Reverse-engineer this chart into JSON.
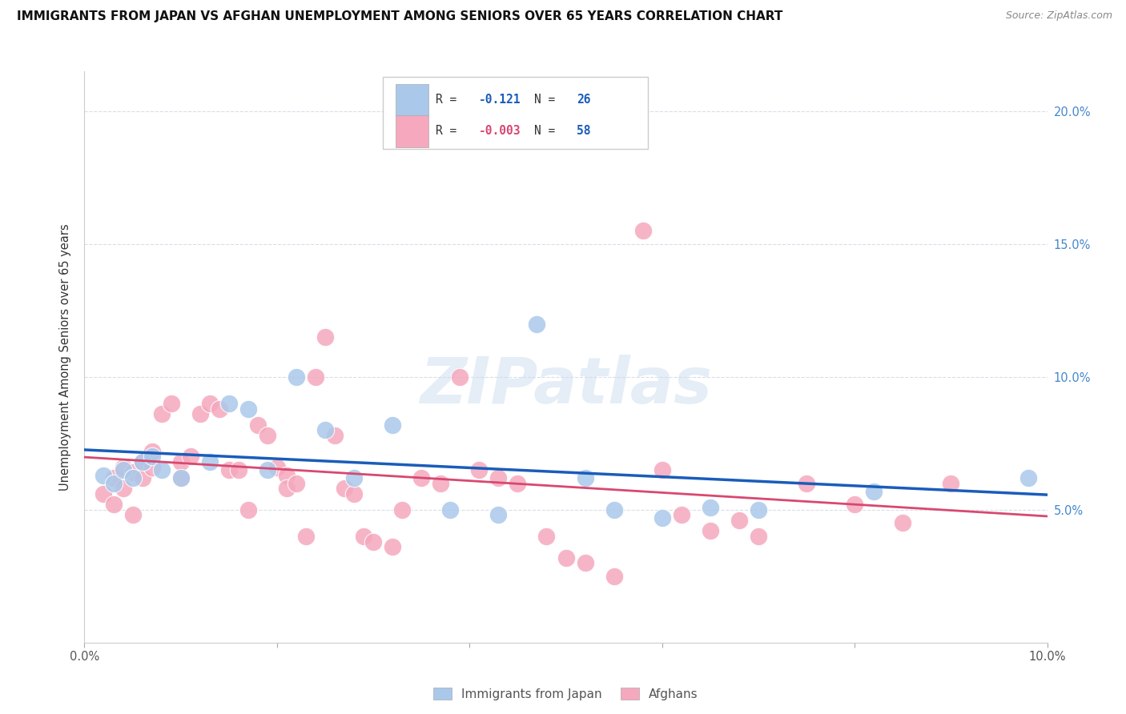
{
  "title": "IMMIGRANTS FROM JAPAN VS AFGHAN UNEMPLOYMENT AMONG SENIORS OVER 65 YEARS CORRELATION CHART",
  "source": "Source: ZipAtlas.com",
  "ylabel": "Unemployment Among Seniors over 65 years",
  "xlim": [
    0.0,
    0.1
  ],
  "ylim": [
    0.0,
    0.215
  ],
  "right_yticks": [
    0.05,
    0.1,
    0.15,
    0.2
  ],
  "xticks": [
    0.0,
    0.02,
    0.04,
    0.06,
    0.08,
    0.1
  ],
  "legend_japan_R": "-0.121",
  "legend_japan_N": "26",
  "legend_afghan_R": "-0.003",
  "legend_afghan_N": "58",
  "japan_color": "#aac8ea",
  "afghan_color": "#f5a8be",
  "japan_trend_color": "#1a5cba",
  "afghan_trend_color": "#d84870",
  "japan_R_color": "#1a5cba",
  "afghan_R_color": "#d84870",
  "N_color": "#1a5cba",
  "watermark": "ZIPatlas",
  "japan_x": [
    0.002,
    0.003,
    0.004,
    0.005,
    0.006,
    0.007,
    0.008,
    0.01,
    0.013,
    0.015,
    0.017,
    0.019,
    0.022,
    0.025,
    0.028,
    0.032,
    0.038,
    0.043,
    0.047,
    0.052,
    0.055,
    0.06,
    0.065,
    0.07,
    0.082,
    0.098
  ],
  "japan_y": [
    0.063,
    0.06,
    0.065,
    0.062,
    0.068,
    0.07,
    0.065,
    0.062,
    0.068,
    0.09,
    0.088,
    0.065,
    0.1,
    0.08,
    0.062,
    0.082,
    0.05,
    0.048,
    0.12,
    0.062,
    0.05,
    0.047,
    0.051,
    0.05,
    0.057,
    0.062
  ],
  "afghan_x": [
    0.002,
    0.003,
    0.003,
    0.004,
    0.004,
    0.005,
    0.005,
    0.006,
    0.006,
    0.007,
    0.007,
    0.008,
    0.009,
    0.01,
    0.01,
    0.011,
    0.012,
    0.013,
    0.014,
    0.015,
    0.016,
    0.017,
    0.018,
    0.019,
    0.02,
    0.021,
    0.021,
    0.022,
    0.023,
    0.024,
    0.025,
    0.026,
    0.027,
    0.028,
    0.029,
    0.03,
    0.032,
    0.033,
    0.035,
    0.037,
    0.039,
    0.041,
    0.043,
    0.045,
    0.048,
    0.05,
    0.052,
    0.055,
    0.058,
    0.06,
    0.062,
    0.065,
    0.068,
    0.07,
    0.075,
    0.08,
    0.085,
    0.09
  ],
  "afghan_y": [
    0.056,
    0.062,
    0.052,
    0.058,
    0.066,
    0.048,
    0.064,
    0.068,
    0.062,
    0.066,
    0.072,
    0.086,
    0.09,
    0.062,
    0.068,
    0.07,
    0.086,
    0.09,
    0.088,
    0.065,
    0.065,
    0.05,
    0.082,
    0.078,
    0.066,
    0.063,
    0.058,
    0.06,
    0.04,
    0.1,
    0.115,
    0.078,
    0.058,
    0.056,
    0.04,
    0.038,
    0.036,
    0.05,
    0.062,
    0.06,
    0.1,
    0.065,
    0.062,
    0.06,
    0.04,
    0.032,
    0.03,
    0.025,
    0.155,
    0.065,
    0.048,
    0.042,
    0.046,
    0.04,
    0.06,
    0.052,
    0.045,
    0.06
  ]
}
